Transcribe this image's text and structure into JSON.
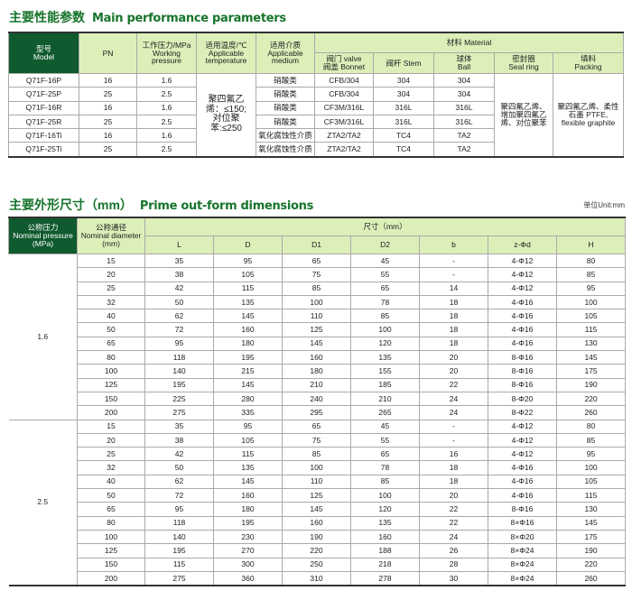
{
  "performance": {
    "title_cn": "主要性能参数",
    "title_en": "Main performance parameters",
    "headers": {
      "model": "型号\nModel",
      "pn": "PN",
      "pressure": "工作压力/MPa\nWorking pressure",
      "temperature": "适用温度/℃\nApplicable temperature",
      "medium": "适用介质\nApplicable medium",
      "material": "材料 Material",
      "valve": "阀门 valve\n阀盖 Bonnet",
      "stem": "阀杆 Stem",
      "ball": "球体\nBall",
      "seal": "密封圈\nSeal ring",
      "packing": "填料\nPacking"
    },
    "temperature_value": "聚四氟乙烯：≤150;对位聚苯:≤250",
    "seal_value": "聚四氟乙烯、增加聚四氟乙烯、对位聚苯",
    "packing_value": "聚四氟乙烯、柔性石墨 PTFE, flexible graphite",
    "rows": [
      [
        "Q71F-16P",
        "16",
        "1.6",
        "硝酸类",
        "CFB/304",
        "304",
        "304"
      ],
      [
        "Q71F-25P",
        "25",
        "2.5",
        "硝酸类",
        "CFB/304",
        "304",
        "304"
      ],
      [
        "Q71F-16R",
        "16",
        "1.6",
        "硝酸类",
        "CF3M/316L",
        "316L",
        "316L"
      ],
      [
        "Q71F-25R",
        "25",
        "2.5",
        "硝酸类",
        "CF3M/316L",
        "316L",
        "316L"
      ],
      [
        "Q71F-16Ti",
        "16",
        "1.6",
        "氧化腐蚀性介质",
        "ZTA2/TA2",
        "TC4",
        "TA2"
      ],
      [
        "Q71F-25Ti",
        "25",
        "2.5",
        "氧化腐蚀性介质",
        "ZTA2/TA2",
        "TC4",
        "TA2"
      ]
    ]
  },
  "dimensions": {
    "title_cn": "主要外形尺寸（mm）",
    "title_en": "Prime out-form dimensions",
    "unit": "单位Unit:mm",
    "headers": {
      "pressure": "公称压力\nNominal pressure\n(MPa)",
      "diameter": "公称通径\nNominal diameter\n(mm)",
      "size": "尺寸（mm）",
      "cols": [
        "L",
        "D",
        "D1",
        "D2",
        "b",
        "z-Φd",
        "H"
      ]
    },
    "groups": [
      {
        "pressure": "1.6",
        "rows": [
          [
            "15",
            "35",
            "95",
            "65",
            "45",
            "-",
            "4-Φ12",
            "80"
          ],
          [
            "20",
            "38",
            "105",
            "75",
            "55",
            "-",
            "4-Φ12",
            "85"
          ],
          [
            "25",
            "42",
            "115",
            "85",
            "65",
            "14",
            "4-Φ12",
            "95"
          ],
          [
            "32",
            "50",
            "135",
            "100",
            "78",
            "18",
            "4-Φ16",
            "100"
          ],
          [
            "40",
            "62",
            "145",
            "110",
            "85",
            "18",
            "4-Φ16",
            "105"
          ],
          [
            "50",
            "72",
            "160",
            "125",
            "100",
            "18",
            "4-Φ16",
            "115"
          ],
          [
            "65",
            "95",
            "180",
            "145",
            "120",
            "18",
            "4-Φ16",
            "130"
          ],
          [
            "80",
            "118",
            "195",
            "160",
            "135",
            "20",
            "8-Φ16",
            "145"
          ],
          [
            "100",
            "140",
            "215",
            "180",
            "155",
            "20",
            "8-Φ16",
            "175"
          ],
          [
            "125",
            "195",
            "145",
            "210",
            "185",
            "22",
            "8-Φ16",
            "190"
          ],
          [
            "150",
            "225",
            "280",
            "240",
            "210",
            "24",
            "8-Φ20",
            "220"
          ],
          [
            "200",
            "275",
            "335",
            "295",
            "265",
            "24",
            "8-Φ22",
            "260"
          ]
        ]
      },
      {
        "pressure": "2.5",
        "rows": [
          [
            "15",
            "35",
            "95",
            "65",
            "45",
            "-",
            "4-Φ12",
            "80"
          ],
          [
            "20",
            "38",
            "105",
            "75",
            "55",
            "-",
            "4-Φ12",
            "85"
          ],
          [
            "25",
            "42",
            "115",
            "85",
            "65",
            "16",
            "4-Φ12",
            "95"
          ],
          [
            "32",
            "50",
            "135",
            "100",
            "78",
            "18",
            "4-Φ16",
            "100"
          ],
          [
            "40",
            "62",
            "145",
            "110",
            "85",
            "18",
            "4-Φ16",
            "105"
          ],
          [
            "50",
            "72",
            "160",
            "125",
            "100",
            "20",
            "4-Φ16",
            "115"
          ],
          [
            "65",
            "95",
            "180",
            "145",
            "120",
            "22",
            "8-Φ16",
            "130"
          ],
          [
            "80",
            "118",
            "195",
            "160",
            "135",
            "22",
            "8×Φ16",
            "145"
          ],
          [
            "100",
            "140",
            "230",
            "190",
            "160",
            "24",
            "8×Φ20",
            "175"
          ],
          [
            "125",
            "195",
            "270",
            "220",
            "188",
            "26",
            "8×Φ24",
            "190"
          ],
          [
            "150",
            "115",
            "300",
            "250",
            "218",
            "28",
            "8×Φ24",
            "220"
          ],
          [
            "200",
            "275",
            "360",
            "310",
            "278",
            "30",
            "8×Φ24",
            "260"
          ]
        ]
      }
    ]
  }
}
